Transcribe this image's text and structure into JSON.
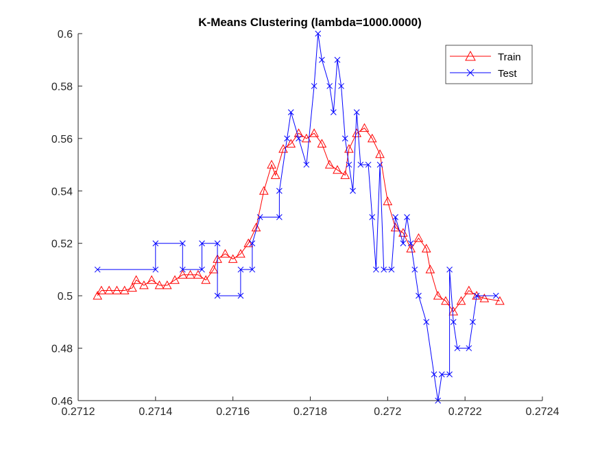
{
  "chart_data": {
    "type": "line",
    "title": "K-Means Clustering (lambda=1000.0000)",
    "xlabel": "",
    "ylabel": "",
    "xlim": [
      0.2712,
      0.2724
    ],
    "ylim": [
      0.46,
      0.6
    ],
    "x_ticks": [
      "0.2712",
      "0.2714",
      "0.2716",
      "0.2718",
      "0.272",
      "0.2722",
      "0.2724"
    ],
    "y_ticks": [
      "0.46",
      "0.48",
      "0.5",
      "0.52",
      "0.54",
      "0.56",
      "0.58",
      "0.6"
    ],
    "grid": false,
    "legend_position": "top-right",
    "series": [
      {
        "name": "Train",
        "color": "#ff0000",
        "marker": "triangle",
        "points": [
          [
            0.27125,
            0.5
          ],
          [
            0.27126,
            0.502
          ],
          [
            0.27128,
            0.502
          ],
          [
            0.2713,
            0.502
          ],
          [
            0.27132,
            0.502
          ],
          [
            0.27134,
            0.503
          ],
          [
            0.27135,
            0.506
          ],
          [
            0.27137,
            0.504
          ],
          [
            0.27139,
            0.506
          ],
          [
            0.27141,
            0.504
          ],
          [
            0.27143,
            0.504
          ],
          [
            0.27145,
            0.506
          ],
          [
            0.27147,
            0.508
          ],
          [
            0.27149,
            0.508
          ],
          [
            0.27151,
            0.508
          ],
          [
            0.27153,
            0.506
          ],
          [
            0.27155,
            0.51
          ],
          [
            0.27156,
            0.514
          ],
          [
            0.27158,
            0.516
          ],
          [
            0.2716,
            0.514
          ],
          [
            0.27162,
            0.516
          ],
          [
            0.27164,
            0.52
          ],
          [
            0.27166,
            0.526
          ],
          [
            0.27168,
            0.54
          ],
          [
            0.2717,
            0.55
          ],
          [
            0.27171,
            0.546
          ],
          [
            0.27173,
            0.556
          ],
          [
            0.27175,
            0.558
          ],
          [
            0.27177,
            0.562
          ],
          [
            0.27179,
            0.56
          ],
          [
            0.27181,
            0.562
          ],
          [
            0.27183,
            0.558
          ],
          [
            0.27185,
            0.55
          ],
          [
            0.27187,
            0.548
          ],
          [
            0.27189,
            0.546
          ],
          [
            0.2719,
            0.556
          ],
          [
            0.27192,
            0.562
          ],
          [
            0.27194,
            0.564
          ],
          [
            0.27196,
            0.56
          ],
          [
            0.27198,
            0.554
          ],
          [
            0.272,
            0.536
          ],
          [
            0.27202,
            0.526
          ],
          [
            0.27204,
            0.524
          ],
          [
            0.27206,
            0.518
          ],
          [
            0.27208,
            0.522
          ],
          [
            0.2721,
            0.518
          ],
          [
            0.27211,
            0.51
          ],
          [
            0.27213,
            0.5
          ],
          [
            0.27215,
            0.498
          ],
          [
            0.27217,
            0.494
          ],
          [
            0.27219,
            0.498
          ],
          [
            0.27221,
            0.502
          ],
          [
            0.27223,
            0.5
          ],
          [
            0.27225,
            0.499
          ],
          [
            0.27229,
            0.498
          ]
        ]
      },
      {
        "name": "Test",
        "color": "#0000ff",
        "marker": "x",
        "points": [
          [
            0.27125,
            0.51
          ],
          [
            0.2714,
            0.51
          ],
          [
            0.2714,
            0.52
          ],
          [
            0.27147,
            0.52
          ],
          [
            0.27147,
            0.51
          ],
          [
            0.27152,
            0.51
          ],
          [
            0.27152,
            0.52
          ],
          [
            0.27156,
            0.52
          ],
          [
            0.27156,
            0.5
          ],
          [
            0.27162,
            0.5
          ],
          [
            0.27162,
            0.51
          ],
          [
            0.27165,
            0.51
          ],
          [
            0.27165,
            0.52
          ],
          [
            0.27167,
            0.53
          ],
          [
            0.27172,
            0.53
          ],
          [
            0.27172,
            0.54
          ],
          [
            0.27174,
            0.56
          ],
          [
            0.27175,
            0.57
          ],
          [
            0.27177,
            0.56
          ],
          [
            0.27179,
            0.55
          ],
          [
            0.27181,
            0.58
          ],
          [
            0.27182,
            0.6
          ],
          [
            0.27183,
            0.59
          ],
          [
            0.27185,
            0.58
          ],
          [
            0.27186,
            0.57
          ],
          [
            0.27187,
            0.59
          ],
          [
            0.27188,
            0.58
          ],
          [
            0.27189,
            0.56
          ],
          [
            0.2719,
            0.55
          ],
          [
            0.27191,
            0.54
          ],
          [
            0.27192,
            0.57
          ],
          [
            0.27193,
            0.55
          ],
          [
            0.27195,
            0.55
          ],
          [
            0.27196,
            0.53
          ],
          [
            0.27197,
            0.51
          ],
          [
            0.27198,
            0.55
          ],
          [
            0.27199,
            0.51
          ],
          [
            0.27201,
            0.51
          ],
          [
            0.27202,
            0.53
          ],
          [
            0.27204,
            0.52
          ],
          [
            0.27205,
            0.53
          ],
          [
            0.27206,
            0.52
          ],
          [
            0.27207,
            0.51
          ],
          [
            0.27208,
            0.5
          ],
          [
            0.2721,
            0.49
          ],
          [
            0.27212,
            0.47
          ],
          [
            0.27213,
            0.46
          ],
          [
            0.27214,
            0.47
          ],
          [
            0.27216,
            0.47
          ],
          [
            0.27216,
            0.51
          ],
          [
            0.27217,
            0.49
          ],
          [
            0.27218,
            0.48
          ],
          [
            0.27221,
            0.48
          ],
          [
            0.27222,
            0.49
          ],
          [
            0.27223,
            0.5
          ],
          [
            0.27228,
            0.5
          ]
        ]
      }
    ]
  }
}
